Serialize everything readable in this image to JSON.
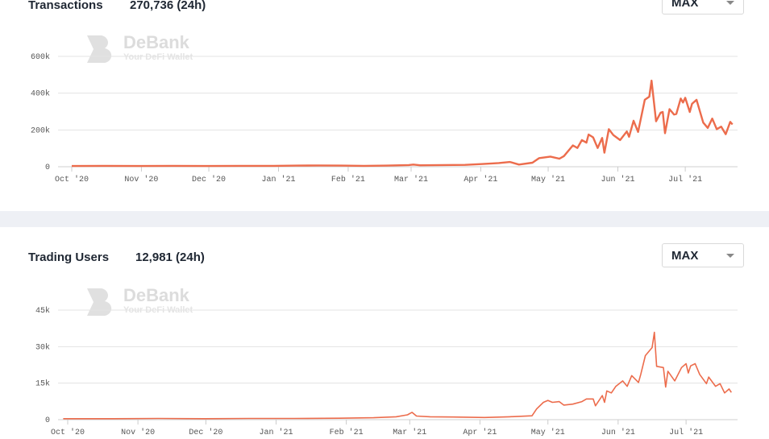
{
  "colors": {
    "line": "#ec6c4c",
    "grid": "#e3e3e3",
    "band": "#eef0f5"
  },
  "watermark": {
    "brand": "DeBank",
    "tagline": "Your DeFi Wallet"
  },
  "transactions": {
    "title": "Transactions",
    "value": "270,736 (24h)",
    "range": "MAX"
  },
  "trading_users": {
    "title": "Trading Users",
    "value": "12,981 (24h)",
    "range": "MAX"
  },
  "chart_data": [
    {
      "type": "line",
      "title": "Transactions",
      "unit": "k",
      "x_unit": "days since Oct 1 2020",
      "ylim": [
        0,
        600
      ],
      "y_ticks": [
        {
          "v": 0,
          "label": "0"
        },
        {
          "v": 200,
          "label": "200k"
        },
        {
          "v": 400,
          "label": "400k"
        },
        {
          "v": 600,
          "label": "600k"
        }
      ],
      "x_ticks": [
        {
          "d": 0,
          "label": "Oct '20"
        },
        {
          "d": 31,
          "label": "Nov '20"
        },
        {
          "d": 61,
          "label": "Dec '20"
        },
        {
          "d": 92,
          "label": "Jan '21"
        },
        {
          "d": 123,
          "label": "Feb '21"
        },
        {
          "d": 151,
          "label": "Mar '21"
        },
        {
          "d": 182,
          "label": "Apr '21"
        },
        {
          "d": 212,
          "label": "May '21"
        },
        {
          "d": 243,
          "label": "Jun '21"
        },
        {
          "d": 273,
          "label": "Jul '21"
        }
      ],
      "points": [
        [
          0,
          4
        ],
        [
          15,
          5
        ],
        [
          30,
          4
        ],
        [
          45,
          5
        ],
        [
          60,
          4
        ],
        [
          75,
          5
        ],
        [
          90,
          5
        ],
        [
          100,
          6
        ],
        [
          110,
          7
        ],
        [
          120,
          6
        ],
        [
          130,
          5
        ],
        [
          140,
          6
        ],
        [
          150,
          9
        ],
        [
          152,
          12
        ],
        [
          155,
          8
        ],
        [
          165,
          9
        ],
        [
          175,
          10
        ],
        [
          183,
          15
        ],
        [
          190,
          20
        ],
        [
          195,
          26
        ],
        [
          199,
          12
        ],
        [
          205,
          22
        ],
        [
          208,
          47
        ],
        [
          213,
          55
        ],
        [
          217,
          44
        ],
        [
          219,
          58
        ],
        [
          223,
          116
        ],
        [
          225,
          102
        ],
        [
          227,
          145
        ],
        [
          229,
          131
        ],
        [
          230,
          175
        ],
        [
          232,
          160
        ],
        [
          234,
          102
        ],
        [
          236,
          157
        ],
        [
          237,
          76
        ],
        [
          239,
          204
        ],
        [
          241,
          172
        ],
        [
          244,
          145
        ],
        [
          247,
          192
        ],
        [
          248,
          163
        ],
        [
          250,
          250
        ],
        [
          252,
          189
        ],
        [
          255,
          364
        ],
        [
          257,
          381
        ],
        [
          258,
          468
        ],
        [
          260,
          247
        ],
        [
          262,
          294
        ],
        [
          263,
          298
        ],
        [
          264,
          182
        ],
        [
          266,
          313
        ],
        [
          268,
          284
        ],
        [
          269,
          287
        ],
        [
          271,
          371
        ],
        [
          272,
          349
        ],
        [
          273,
          375
        ],
        [
          275,
          298
        ],
        [
          276,
          342
        ],
        [
          278,
          364
        ],
        [
          281,
          240
        ],
        [
          283,
          211
        ],
        [
          285,
          262
        ],
        [
          287,
          204
        ],
        [
          289,
          218
        ],
        [
          291,
          177
        ],
        [
          293,
          244
        ],
        [
          294,
          230
        ]
      ]
    },
    {
      "type": "line",
      "title": "Trading Users",
      "unit": "k",
      "x_unit": "days since Oct 1 2020",
      "ylim": [
        0,
        45
      ],
      "y_ticks": [
        {
          "v": 0,
          "label": "0"
        },
        {
          "v": 15,
          "label": "15k"
        },
        {
          "v": 30,
          "label": "30k"
        },
        {
          "v": 45,
          "label": "45k"
        }
      ],
      "x_ticks": [
        {
          "d": 0,
          "label": "Oct '20"
        },
        {
          "d": 31,
          "label": "Nov '20"
        },
        {
          "d": 61,
          "label": "Dec '20"
        },
        {
          "d": 92,
          "label": "Jan '21"
        },
        {
          "d": 123,
          "label": "Feb '21"
        },
        {
          "d": 151,
          "label": "Mar '21"
        },
        {
          "d": 182,
          "label": "Apr '21"
        },
        {
          "d": 212,
          "label": "May '21"
        },
        {
          "d": 243,
          "label": "Jun '21"
        },
        {
          "d": 273,
          "label": "Jul '21"
        }
      ],
      "points": [
        [
          -2,
          0.4
        ],
        [
          20,
          0.4
        ],
        [
          40,
          0.5
        ],
        [
          60,
          0.4
        ],
        [
          80,
          0.5
        ],
        [
          100,
          0.5
        ],
        [
          120,
          0.6
        ],
        [
          135,
          0.8
        ],
        [
          145,
          1.2
        ],
        [
          150,
          2
        ],
        [
          152,
          3
        ],
        [
          154,
          1.5
        ],
        [
          160,
          1.2
        ],
        [
          170,
          1.1
        ],
        [
          184,
          0.9
        ],
        [
          195,
          1.2
        ],
        [
          205,
          1.6
        ],
        [
          207,
          4.4
        ],
        [
          210,
          7.1
        ],
        [
          212,
          7.9
        ],
        [
          214,
          7.1
        ],
        [
          217,
          7.4
        ],
        [
          219,
          6.0
        ],
        [
          223,
          6.4
        ],
        [
          227,
          7.4
        ],
        [
          229,
          8.5
        ],
        [
          232,
          8.5
        ],
        [
          233,
          5.7
        ],
        [
          236,
          9.9
        ],
        [
          237,
          7.1
        ],
        [
          238,
          11.8
        ],
        [
          240,
          11.0
        ],
        [
          242,
          13.7
        ],
        [
          245,
          15.9
        ],
        [
          247,
          13.7
        ],
        [
          249,
          18.1
        ],
        [
          252,
          15.3
        ],
        [
          253,
          18.6
        ],
        [
          255,
          26.3
        ],
        [
          258,
          29.6
        ],
        [
          259,
          35.9
        ],
        [
          260,
          21.9
        ],
        [
          263,
          21.4
        ],
        [
          264,
          13.4
        ],
        [
          265,
          19.9
        ],
        [
          268,
          15.9
        ],
        [
          271,
          21.4
        ],
        [
          273,
          23.0
        ],
        [
          274,
          19.2
        ],
        [
          275,
          22.1
        ],
        [
          277,
          23.0
        ],
        [
          279,
          18.6
        ],
        [
          282,
          14.8
        ],
        [
          283,
          17.5
        ],
        [
          286,
          13.7
        ],
        [
          288,
          14.8
        ],
        [
          290,
          11.0
        ],
        [
          292,
          12.6
        ],
        [
          293,
          11.2
        ]
      ]
    }
  ]
}
